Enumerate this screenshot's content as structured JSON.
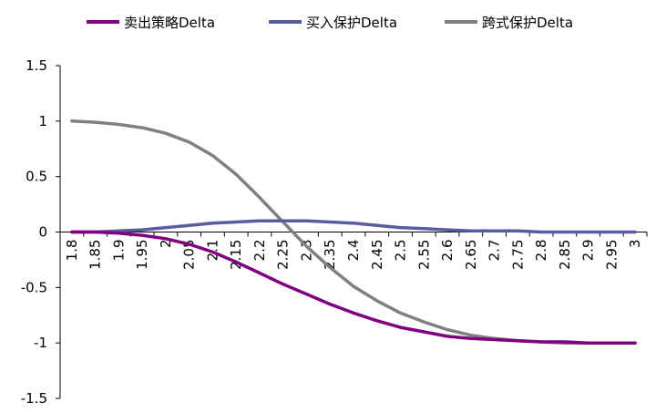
{
  "chart_data": {
    "type": "line",
    "title": "",
    "xlabel": "",
    "ylabel": "",
    "legend_position": "top",
    "grid": false,
    "x": [
      "1.8",
      "1.85",
      "1.9",
      "1.95",
      "2",
      "2.05",
      "2.1",
      "2.15",
      "2.2",
      "2.25",
      "2.3",
      "2.35",
      "2.4",
      "2.45",
      "2.5",
      "2.55",
      "2.6",
      "2.65",
      "2.7",
      "2.75",
      "2.8",
      "2.85",
      "2.9",
      "2.95",
      "3"
    ],
    "ylim": [
      -1.5,
      1.5
    ],
    "yticks": [
      "1.5",
      "1",
      "0.5",
      "0",
      "-0.5",
      "-1",
      "-1.5"
    ],
    "ytick_values": [
      1.5,
      1,
      0.5,
      0,
      -0.5,
      -1,
      -1.5
    ],
    "series": [
      {
        "name": "卖出策略Delta",
        "color": "#800080",
        "values": [
          0,
          0,
          -0.01,
          -0.03,
          -0.06,
          -0.11,
          -0.18,
          -0.27,
          -0.37,
          -0.47,
          -0.56,
          -0.65,
          -0.73,
          -0.8,
          -0.86,
          -0.9,
          -0.94,
          -0.96,
          -0.97,
          -0.98,
          -0.99,
          -0.99,
          -1.0,
          -1.0,
          -1.0
        ]
      },
      {
        "name": "买入保护Delta",
        "color": "#5B5B9F",
        "values": [
          0,
          0,
          0.01,
          0.02,
          0.04,
          0.06,
          0.08,
          0.09,
          0.1,
          0.1,
          0.1,
          0.09,
          0.08,
          0.06,
          0.04,
          0.03,
          0.02,
          0.01,
          0.01,
          0.01,
          0,
          0,
          0,
          0,
          0
        ]
      },
      {
        "name": "跨式保护Delta",
        "color": "#808080",
        "values": [
          1.0,
          0.99,
          0.97,
          0.94,
          0.89,
          0.81,
          0.69,
          0.52,
          0.31,
          0.09,
          -0.13,
          -0.32,
          -0.49,
          -0.62,
          -0.73,
          -0.81,
          -0.88,
          -0.93,
          -0.96,
          -0.98,
          -0.99,
          -1.0,
          -1.0,
          -1.0,
          -1.0
        ]
      }
    ]
  }
}
